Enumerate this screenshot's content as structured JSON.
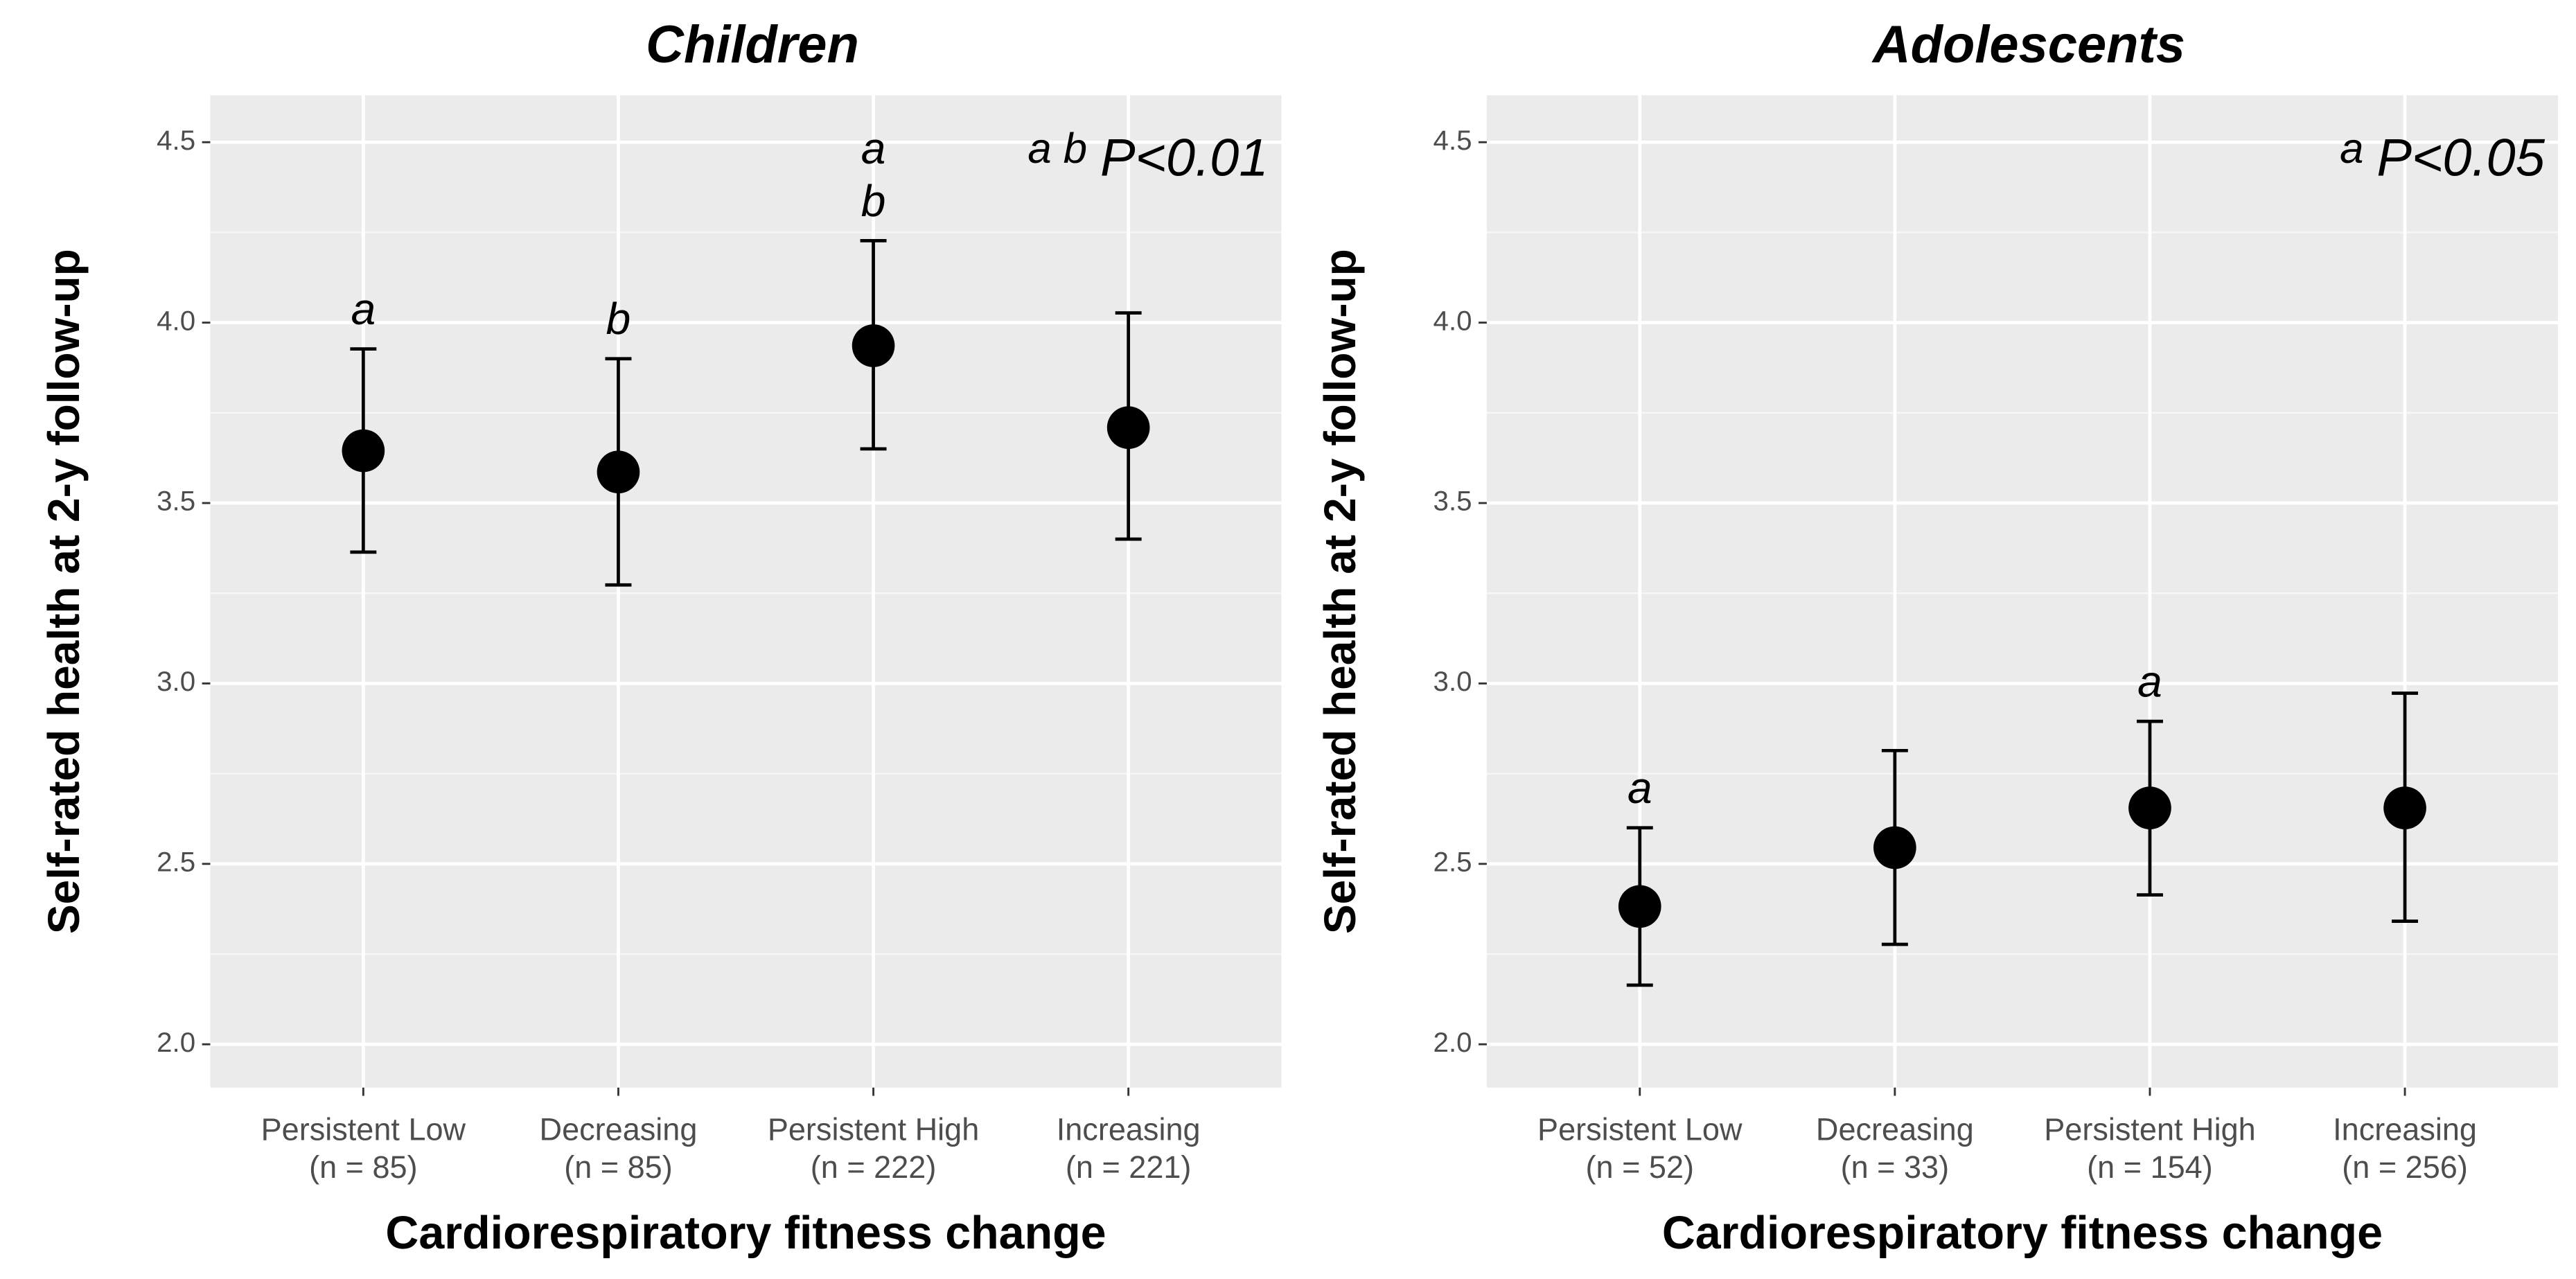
{
  "chart_data": [
    {
      "type": "errorbar",
      "title": "Children",
      "categories": [
        "Persistent Low",
        "Decreasing",
        "Persistent High",
        "Increasing"
      ],
      "n_labels": [
        "(n = 85)",
        "(n = 85)",
        "(n = 222)",
        "(n = 221)"
      ],
      "values": [
        3.645,
        3.586,
        3.936,
        3.709
      ],
      "lower": [
        3.364,
        3.273,
        3.65,
        3.4
      ],
      "upper": [
        3.927,
        3.9,
        4.227,
        4.027
      ],
      "letters": [
        [
          "a"
        ],
        [
          "b"
        ],
        [
          "a",
          "b"
        ],
        []
      ],
      "annotation": {
        "letters": "a b",
        "text": "P<0.01"
      },
      "xlabel": "Cardiorespiratory fitness change",
      "ylabel": "Self-rated health at 2-y follow-up",
      "ylim": [
        1.88,
        4.63
      ],
      "yticks": [
        {
          "value": 2,
          "label": "2.0"
        },
        2.5,
        {
          "value": 3,
          "label": "3.0"
        },
        3.5,
        {
          "value": 4,
          "label": "4.0"
        },
        4.5
      ],
      "minor_yticks": [
        2.25,
        2.75,
        3.25,
        3.75,
        4.25
      ],
      "color": "#000000",
      "grid": true
    },
    {
      "type": "errorbar",
      "title": "Adolescents",
      "categories": [
        "Persistent Low",
        "Decreasing",
        "Persistent High",
        "Increasing"
      ],
      "n_labels": [
        "(n = 52)",
        "(n = 33)",
        "(n = 154)",
        "(n = 256)"
      ],
      "values": [
        2.382,
        2.545,
        2.655,
        2.655
      ],
      "lower": [
        2.164,
        2.277,
        2.414,
        2.341
      ],
      "upper": [
        2.6,
        2.814,
        2.895,
        2.973
      ],
      "letters": [
        [
          "a"
        ],
        [],
        [
          "a"
        ],
        []
      ],
      "annotation": {
        "letters": "a",
        "text": "P<0.05"
      },
      "xlabel": "Cardiorespiratory fitness change",
      "ylabel": "Self-rated health at 2-y follow-up",
      "ylim": [
        1.88,
        4.63
      ],
      "yticks": [
        {
          "value": 2,
          "label": "2.0"
        },
        2.5,
        {
          "value": 3,
          "label": "3.0"
        },
        3.5,
        {
          "value": 4,
          "label": "4.0"
        },
        4.5
      ],
      "minor_yticks": [
        2.25,
        2.75,
        3.25,
        3.75,
        4.25
      ],
      "color": "#000000",
      "grid": true
    }
  ]
}
